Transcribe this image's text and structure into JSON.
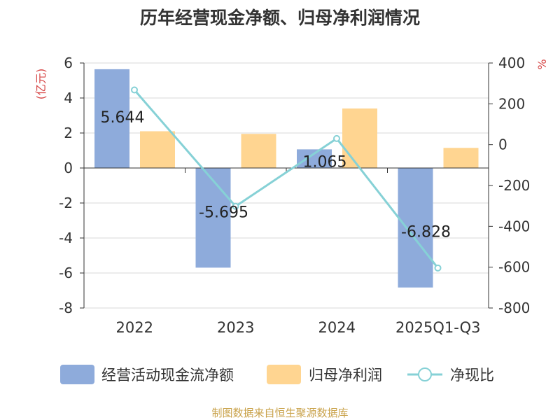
{
  "colors": {
    "bar_series": "#8eabdb",
    "bar_series2": "#ffd591",
    "line": "#86d1d6",
    "unit_label": "#d64545",
    "source": "#c9a24a"
  },
  "chart_data": {
    "type": "bar",
    "title": "历年经营现金净额、归母净利润情况",
    "categories": [
      "2022",
      "2023",
      "2024",
      "2025Q1-Q3"
    ],
    "y_left": {
      "label": "(亿元)",
      "ylim": [
        -8,
        6
      ],
      "ticks": [
        "6",
        "4",
        "2",
        "0",
        "-2",
        "-4",
        "-6",
        "-8"
      ]
    },
    "y_right": {
      "label": "%",
      "ylim": [
        -800,
        400
      ],
      "ticks": [
        "400",
        "200",
        "0",
        "-200",
        "-400",
        "-600",
        "-800"
      ]
    },
    "series": [
      {
        "name": "经营活动现金流净额",
        "type": "bar",
        "axis": "left",
        "values": [
          5.644,
          -5.695,
          1.065,
          -6.828
        ],
        "labels": [
          "5.644",
          "-5.695",
          "1.065",
          "-6.828"
        ]
      },
      {
        "name": "归母净利润",
        "type": "bar",
        "axis": "left",
        "values": [
          2.1,
          1.95,
          3.4,
          1.15
        ]
      },
      {
        "name": "净现比",
        "type": "line",
        "axis": "right",
        "values": [
          268,
          -302,
          30,
          -604
        ]
      }
    ],
    "grid": true,
    "legend_position": "bottom"
  },
  "source": "制图数据来自恒生聚源数据库"
}
